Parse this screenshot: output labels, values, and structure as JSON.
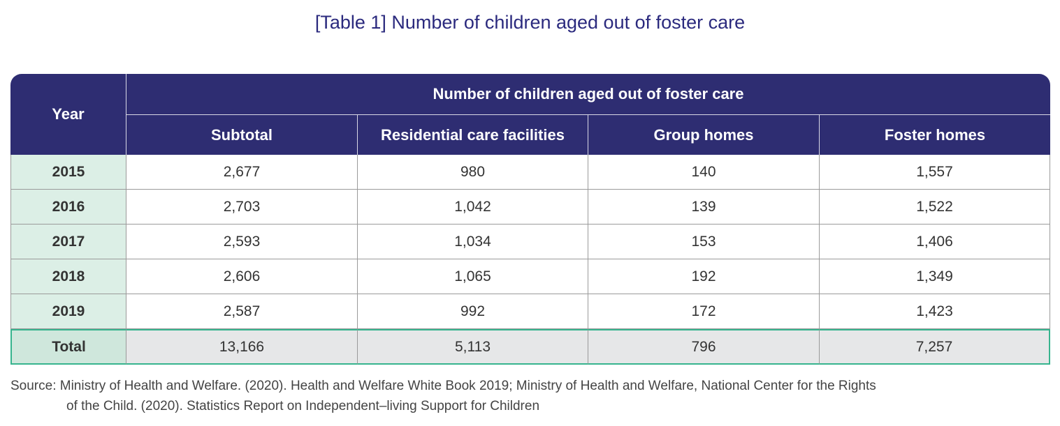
{
  "title": "[Table 1] Number of children aged out of foster care",
  "table": {
    "year_header": "Year",
    "group_header": "Number of children aged out of foster care",
    "columns": [
      "Subtotal",
      "Residential care facilities",
      "Group homes",
      "Foster homes"
    ],
    "rows": [
      {
        "year": "2015",
        "values": [
          "2,677",
          "980",
          "140",
          "1,557"
        ]
      },
      {
        "year": "2016",
        "values": [
          "2,703",
          "1,042",
          "139",
          "1,522"
        ]
      },
      {
        "year": "2017",
        "values": [
          "2,593",
          "1,034",
          "153",
          "1,406"
        ]
      },
      {
        "year": "2018",
        "values": [
          "2,606",
          "1,065",
          "192",
          "1,349"
        ]
      },
      {
        "year": "2019",
        "values": [
          "2,587",
          "992",
          "172",
          "1,423"
        ]
      }
    ],
    "total": {
      "label": "Total",
      "values": [
        "13,166",
        "5,113",
        "796",
        "7,257"
      ]
    }
  },
  "source": {
    "line1": "Source: Ministry of Health and Welfare. (2020). Health and Welfare White Book 2019; Ministry of Health and Welfare, National Center for the Rights",
    "line2": "of the Child. (2020). Statistics Report on Independent–living Support for Children"
  },
  "colors": {
    "header_bg": "#2e2d72",
    "year_cell_bg": "#dcefe6",
    "total_border": "#37b48e",
    "title_color": "#2b2a7e"
  }
}
